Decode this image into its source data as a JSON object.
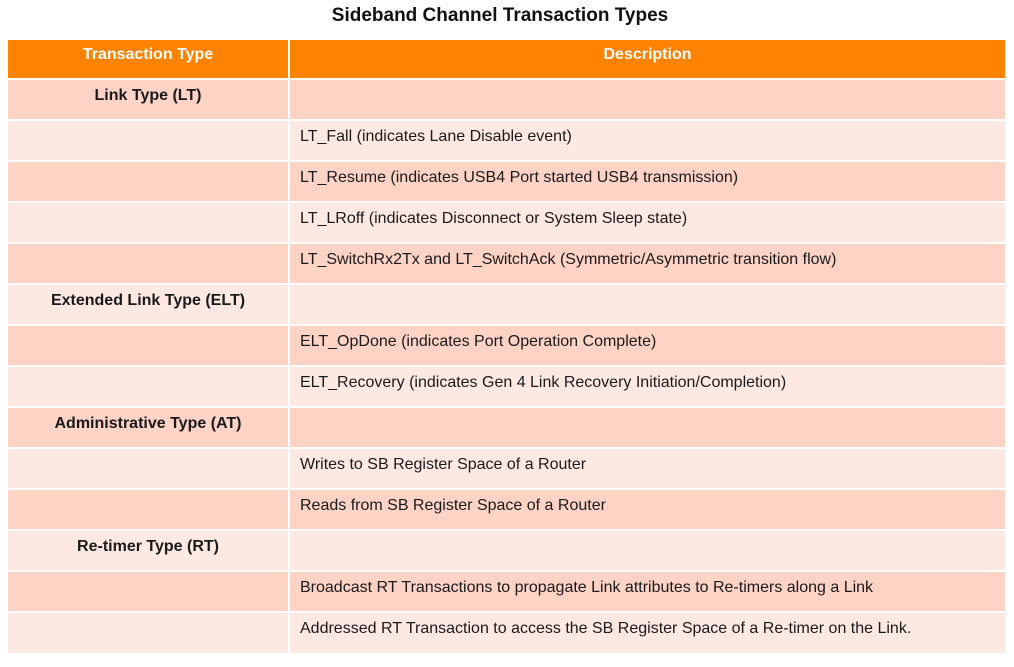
{
  "title": "Sideband Channel Transaction Types",
  "headers": {
    "type": "Transaction Type",
    "description": "Description"
  },
  "rows": [
    {
      "type": "Link Type (LT)",
      "description": ""
    },
    {
      "type": "",
      "description": "LT_Fall (indicates Lane Disable event)"
    },
    {
      "type": "",
      "description": "LT_Resume (indicates USB4 Port started USB4 transmission)"
    },
    {
      "type": "",
      "description": "LT_LRoff (indicates Disconnect or System Sleep state)"
    },
    {
      "type": "",
      "description": "LT_SwitchRx2Tx and LT_SwitchAck (Symmetric/Asymmetric transition flow)"
    },
    {
      "type": "Extended Link Type (ELT)",
      "description": ""
    },
    {
      "type": "",
      "description": "ELT_OpDone (indicates Port Operation Complete)"
    },
    {
      "type": "",
      "description": "ELT_Recovery (indicates Gen 4 Link Recovery Initiation/Completion)"
    },
    {
      "type": "Administrative Type (AT)",
      "description": ""
    },
    {
      "type": "",
      "description": "Writes to SB Register Space of a Router"
    },
    {
      "type": "",
      "description": "Reads from SB Register Space of a Router"
    },
    {
      "type": "Re-timer Type (RT)",
      "description": ""
    },
    {
      "type": "",
      "description": "Broadcast RT Transactions to propagate Link attributes to Re-timers along a Link"
    },
    {
      "type": "",
      "description": "Addressed RT Transaction to access the SB Register Space of a Re-timer on the Link."
    }
  ],
  "colors": {
    "header_bg": "#ff8200",
    "row_dark": "#fdd3c6",
    "row_light": "#fee9e2"
  }
}
